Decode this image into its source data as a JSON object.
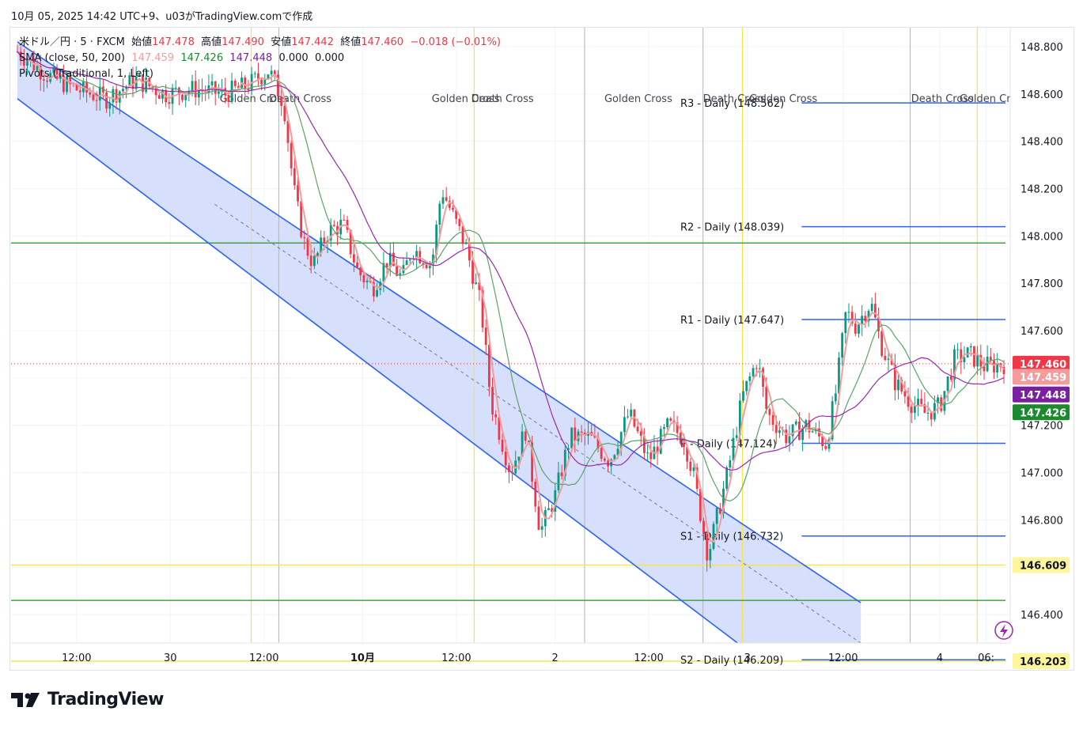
{
  "header": {
    "attribution": "10月 05, 2025 14:42 UTC+9、u03がTradingView.comで作成"
  },
  "legend": {
    "symbol": "米ドル／円 · 5 · FXCM",
    "open_label": "始値",
    "open": "147.478",
    "high_label": "高値",
    "high": "147.490",
    "low_label": "安値",
    "low": "147.442",
    "close_label": "終値",
    "close": "147.460",
    "change": "−0.018 (−0.01%)",
    "sma_label": "SMA (close, 50, 200)",
    "sma_values": [
      "147.459",
      "147.426",
      "147.448",
      "0.000",
      "0.000"
    ],
    "pivots_label": "Pivots (Traditional, 1, Left)"
  },
  "brand": {
    "logo_text": "TradingView"
  },
  "colors": {
    "up": "#089981",
    "down": "#f23645",
    "channel": "#2962ff",
    "channel_fill": "#d1dcfb",
    "pivot": "#2962ff",
    "golden": "#f7e34a",
    "green_line": "#43a047",
    "yellow_line": "#f5e64c",
    "sma_fast": "#f49b9c",
    "sma_mid": "#5aa469",
    "sma_slow": "#9c27b0"
  },
  "chart_data": {
    "type": "candlestick",
    "y_axis": {
      "ylim": [
        146.28,
        148.88
      ],
      "ticks": [
        "146.400",
        "146.600",
        "146.800",
        "147.000",
        "147.200",
        "147.400",
        "147.600",
        "147.800",
        "148.000",
        "148.200",
        "148.400",
        "148.600",
        "148.800"
      ]
    },
    "x_axis": {
      "ticks": [
        {
          "label": "12:00",
          "i": 0.06
        },
        {
          "label": "30",
          "i": 0.155
        },
        {
          "label": "12:00",
          "i": 0.25
        },
        {
          "label": "10月",
          "i": 0.35,
          "bold": true
        },
        {
          "label": "12:00",
          "i": 0.445
        },
        {
          "label": "2",
          "i": 0.545
        },
        {
          "label": "12:00",
          "i": 0.64
        },
        {
          "label": "3",
          "i": 0.74
        },
        {
          "label": "12:00",
          "i": 0.837
        },
        {
          "label": "4",
          "i": 0.935
        },
        {
          "label": "06:",
          "i": 0.982
        }
      ]
    },
    "price_path": [
      [
        0.0,
        148.78
      ],
      [
        0.03,
        148.68
      ],
      [
        0.06,
        148.62
      ],
      [
        0.09,
        148.58
      ],
      [
        0.12,
        148.66
      ],
      [
        0.15,
        148.6
      ],
      [
        0.18,
        148.62
      ],
      [
        0.21,
        148.6
      ],
      [
        0.235,
        148.64
      ],
      [
        0.255,
        148.7
      ],
      [
        0.27,
        148.56
      ],
      [
        0.28,
        148.2
      ],
      [
        0.29,
        147.98
      ],
      [
        0.3,
        147.88
      ],
      [
        0.315,
        148.02
      ],
      [
        0.33,
        148.05
      ],
      [
        0.345,
        147.85
      ],
      [
        0.36,
        147.78
      ],
      [
        0.375,
        147.9
      ],
      [
        0.39,
        147.82
      ],
      [
        0.4,
        147.95
      ],
      [
        0.42,
        147.88
      ],
      [
        0.43,
        148.2
      ],
      [
        0.44,
        148.1
      ],
      [
        0.455,
        147.95
      ],
      [
        0.47,
        147.7
      ],
      [
        0.48,
        147.3
      ],
      [
        0.49,
        147.15
      ],
      [
        0.5,
        147.0
      ],
      [
        0.515,
        147.18
      ],
      [
        0.53,
        146.75
      ],
      [
        0.545,
        146.9
      ],
      [
        0.56,
        147.15
      ],
      [
        0.58,
        147.15
      ],
      [
        0.6,
        147.05
      ],
      [
        0.62,
        147.25
      ],
      [
        0.64,
        147.05
      ],
      [
        0.66,
        147.2
      ],
      [
        0.675,
        147.15
      ],
      [
        0.685,
        147.0
      ],
      [
        0.7,
        146.65
      ],
      [
        0.72,
        147.0
      ],
      [
        0.735,
        147.32
      ],
      [
        0.75,
        147.48
      ],
      [
        0.76,
        147.25
      ],
      [
        0.78,
        147.15
      ],
      [
        0.8,
        147.2
      ],
      [
        0.82,
        147.12
      ],
      [
        0.83,
        147.35
      ],
      [
        0.84,
        147.68
      ],
      [
        0.85,
        147.62
      ],
      [
        0.865,
        147.72
      ],
      [
        0.875,
        147.55
      ],
      [
        0.89,
        147.38
      ],
      [
        0.905,
        147.3
      ],
      [
        0.92,
        147.25
      ],
      [
        0.935,
        147.28
      ],
      [
        0.95,
        147.48
      ],
      [
        0.965,
        147.5
      ],
      [
        0.98,
        147.45
      ],
      [
        1.0,
        147.46
      ]
    ],
    "channel": {
      "upper": [
        [
          0.0,
          148.82
        ],
        [
          0.855,
          146.45
        ]
      ],
      "lower": [
        [
          0.0,
          148.58
        ],
        [
          0.73,
          146.28
        ]
      ],
      "mid": [
        [
          0.0,
          148.7
        ],
        [
          0.855,
          146.28
        ]
      ]
    },
    "golden_cross_lines": [
      0.237,
      0.463,
      0.735,
      0.973
    ],
    "death_cross_lines": [
      0.265,
      0.575,
      0.695,
      0.905
    ],
    "cross_labels": [
      {
        "text": "Golden Cross",
        "i": 0.205
      },
      {
        "text": "Death Cross",
        "i": 0.255
      },
      {
        "text": "Golden Cross",
        "i": 0.42
      },
      {
        "text": "Death Cross",
        "i": 0.46
      },
      {
        "text": "Golden Cross",
        "i": 0.595
      },
      {
        "text": "Death Cross",
        "i": 0.695
      },
      {
        "text": "Golden Cross",
        "i": 0.742
      },
      {
        "text": "Death Cross",
        "i": 0.906
      },
      {
        "text": "Golden Cr",
        "i": 0.955
      }
    ],
    "pivots": [
      {
        "label": "R3 - Daily (148.562)",
        "value": 148.562
      },
      {
        "label": "R2 - Daily (148.039)",
        "value": 148.039
      },
      {
        "label": "R1 - Daily (147.647)",
        "value": 147.647
      },
      {
        "label": "P - Daily (147.124)",
        "value": 147.124
      },
      {
        "label": "S1 - Daily (146.732)",
        "value": 146.732
      },
      {
        "label": "S2 - Daily (146.209)",
        "value": 146.209
      }
    ],
    "horizontal_lines": [
      {
        "value": 147.97,
        "color": "green"
      },
      {
        "value": 146.46,
        "color": "green"
      },
      {
        "value": 146.609,
        "color": "yellow",
        "label": "146.609"
      },
      {
        "value": 146.203,
        "color": "yellow",
        "label": "146.203"
      }
    ],
    "price_badges": [
      {
        "label": "147.460",
        "value": 147.46,
        "color": "#f23645"
      },
      {
        "label": "147.459",
        "value": 147.405,
        "color": "#f49b9c"
      },
      {
        "label": "147.448",
        "value": 147.33,
        "color": "#7b1fa2"
      },
      {
        "label": "147.426",
        "value": 147.255,
        "color": "#1b8a2f"
      }
    ]
  }
}
